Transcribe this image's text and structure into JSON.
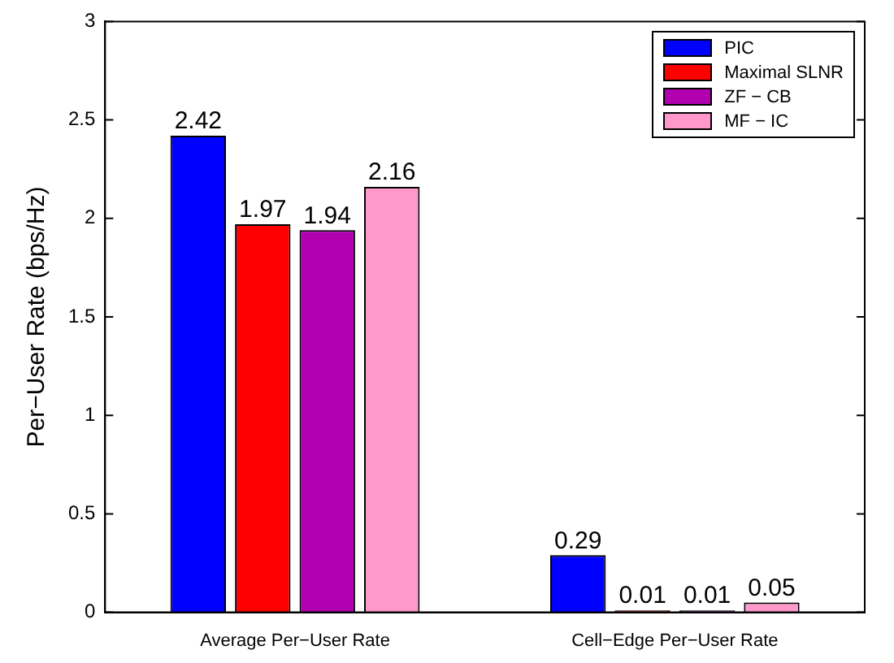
{
  "chart_data": {
    "type": "bar",
    "ylabel": "Per−User Rate (bps/Hz)",
    "categories": [
      "Average Per−User Rate",
      "Cell−Edge Per−User Rate"
    ],
    "series": [
      {
        "name": "PIC",
        "color": "#0000ff",
        "values": [
          2.42,
          0.29
        ]
      },
      {
        "name": "Maximal SLNR",
        "color": "#ff0000",
        "values": [
          1.97,
          0.01
        ]
      },
      {
        "name": "ZF − CB",
        "color": "#b000b0",
        "values": [
          1.94,
          0.01
        ]
      },
      {
        "name": "MF − IC",
        "color": "#ff99cc",
        "values": [
          2.16,
          0.05
        ]
      }
    ],
    "ylim": [
      0,
      3
    ],
    "yticks": [
      0,
      0.5,
      1,
      1.5,
      2,
      2.5,
      3
    ],
    "data_labels": true,
    "legend": "top right",
    "grid": false
  }
}
